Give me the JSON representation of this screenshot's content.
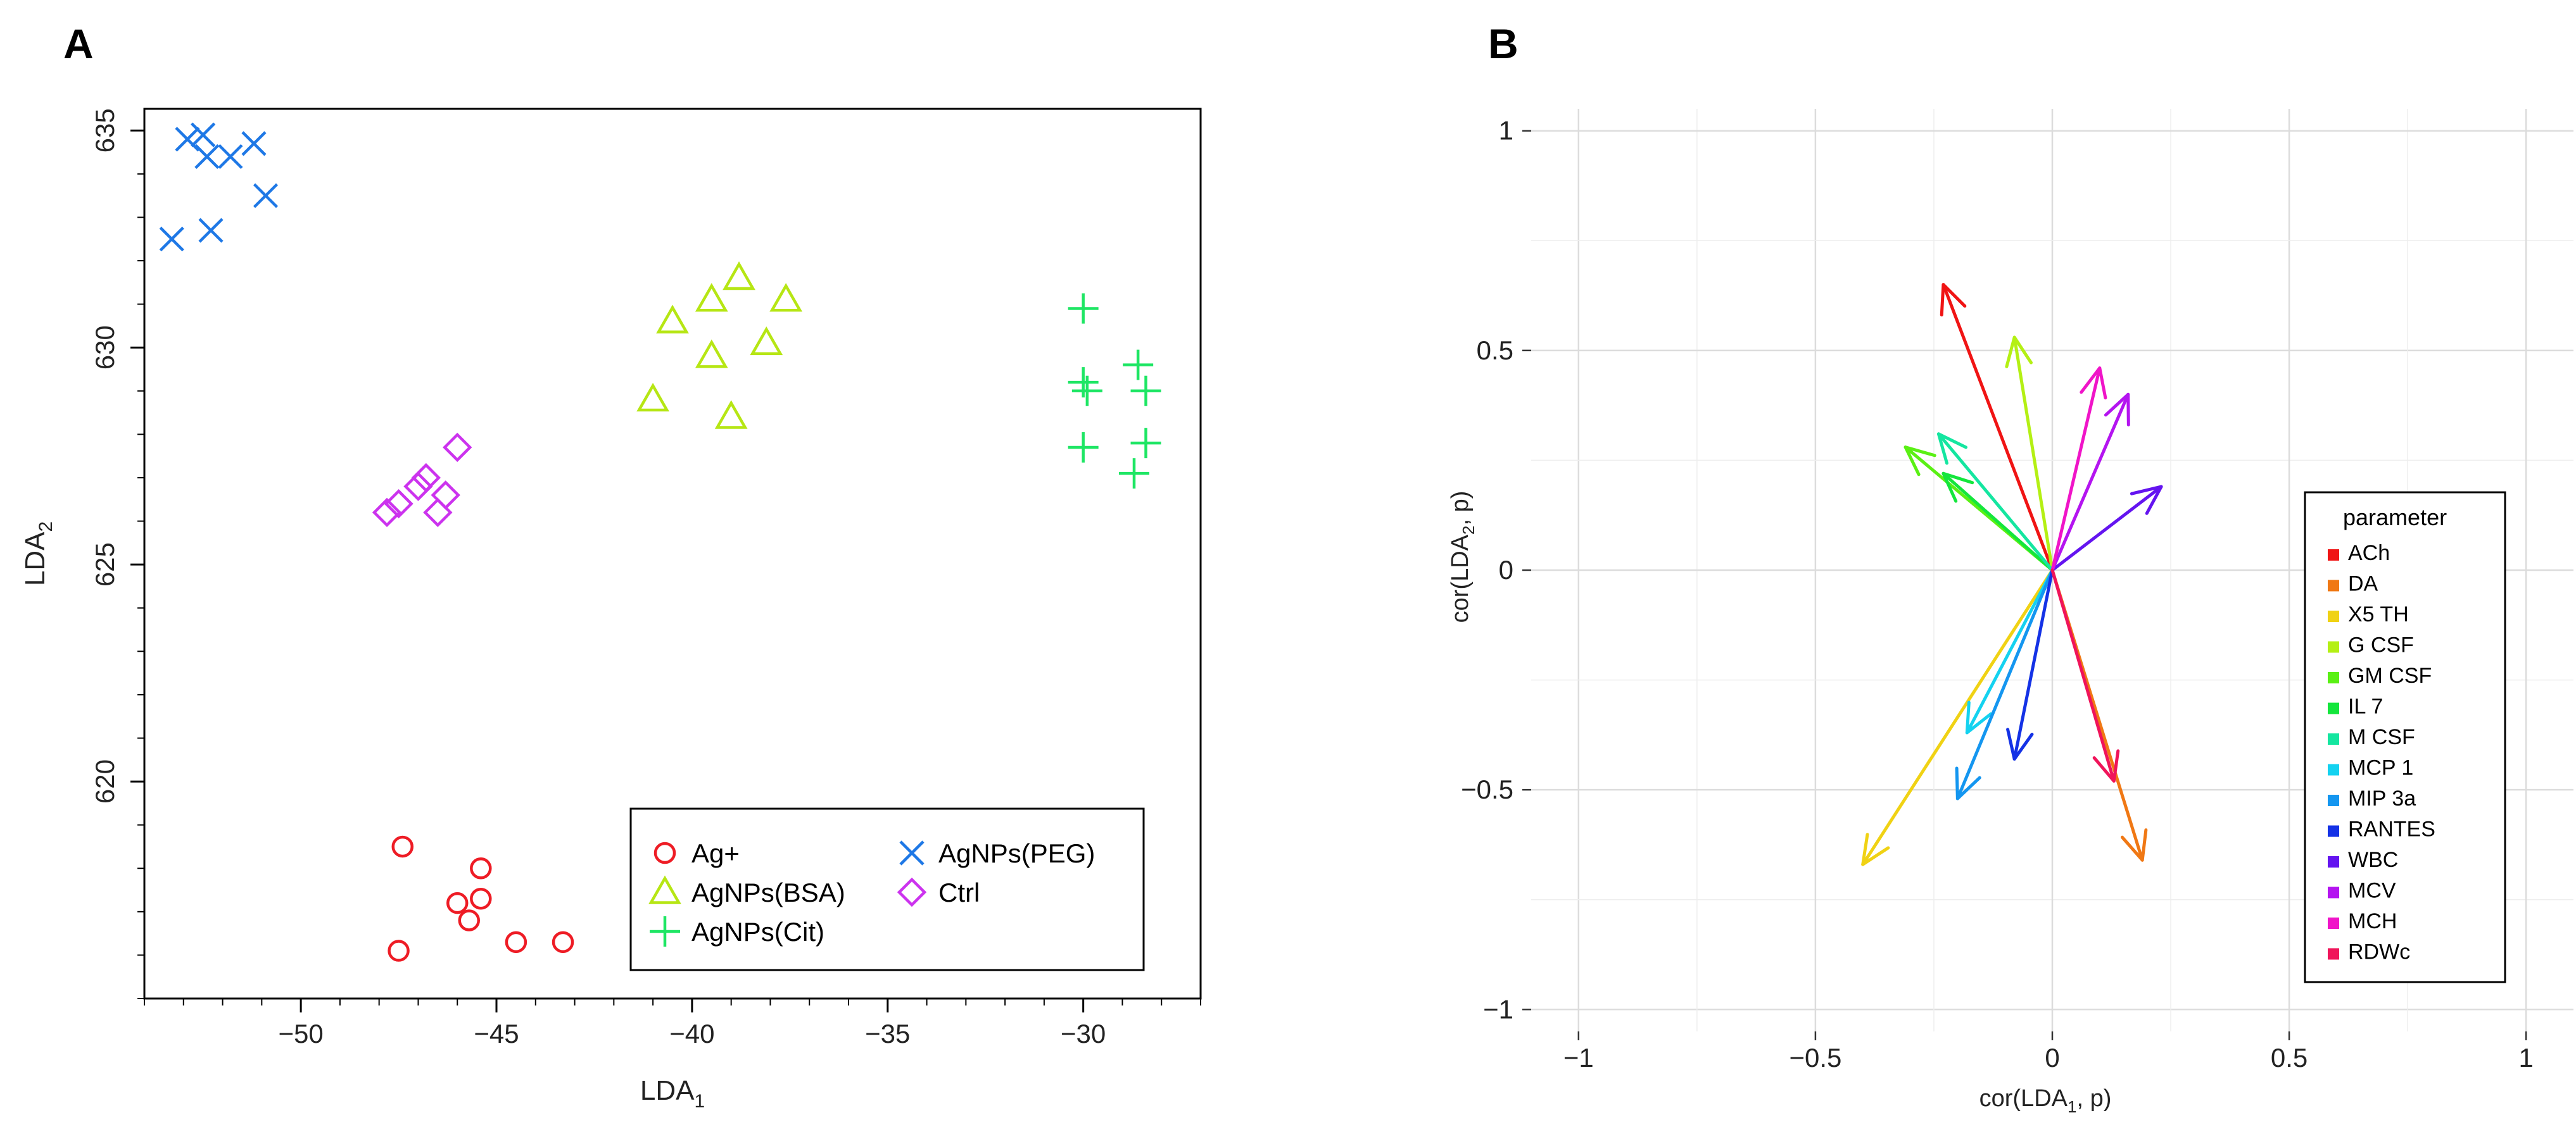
{
  "chart_data": [
    {
      "panel_label": "A",
      "type": "scatter",
      "xlabel": "LDA",
      "xlabel_sub": "1",
      "ylabel": "LDA",
      "ylabel_sub": "2",
      "xlim": [
        -54,
        -27
      ],
      "ylim": [
        615,
        635.5
      ],
      "xticks": [
        -50,
        -45,
        -40,
        -35,
        -30
      ],
      "xtick_labels": [
        "−50",
        "−45",
        "−40",
        "−35",
        "−30"
      ],
      "yticks": [
        620,
        625,
        630,
        635
      ],
      "ytick_labels": [
        "620",
        "625",
        "630",
        "635"
      ],
      "legend_position": "bottom-right",
      "series": [
        {
          "name": "Ag+",
          "marker": "circle",
          "color": "#ee1c25",
          "x": [
            -47.4,
            -45.4,
            -46.0,
            -45.4,
            -45.7,
            -44.5,
            -43.3,
            -47.5
          ],
          "y": [
            618.5,
            618.0,
            617.2,
            617.3,
            616.8,
            616.3,
            616.3,
            616.1
          ]
        },
        {
          "name": "AgNPs(BSA)",
          "marker": "triangle",
          "color": "#b6e614",
          "x": [
            -38.8,
            -39.5,
            -37.6,
            -40.5,
            -39.5,
            -38.1,
            -41.0,
            -39.0
          ],
          "y": [
            631.6,
            631.1,
            631.1,
            630.6,
            629.8,
            630.1,
            628.8,
            628.4
          ]
        },
        {
          "name": "AgNPs(Cit)",
          "marker": "plus",
          "color": "#1ee664",
          "x": [
            -30.0,
            -28.6,
            -30.0,
            -29.9,
            -28.4,
            -30.0,
            -28.4,
            -28.7
          ],
          "y": [
            630.9,
            629.6,
            629.2,
            629.0,
            629.0,
            627.7,
            627.8,
            627.1
          ]
        },
        {
          "name": "AgNPs(PEG)",
          "marker": "x",
          "color": "#1e78e6",
          "x": [
            -52.5,
            -52.9,
            -51.2,
            -51.8,
            -52.4,
            -50.9,
            -52.3,
            -53.3
          ],
          "y": [
            634.9,
            634.8,
            634.7,
            634.4,
            634.4,
            633.5,
            632.7,
            632.5
          ]
        },
        {
          "name": "Ctrl",
          "marker": "diamond",
          "color": "#cc33ee",
          "x": [
            -46.0,
            -46.8,
            -47.0,
            -46.3,
            -47.5,
            -47.8,
            -46.5
          ],
          "y": [
            627.7,
            627.0,
            626.8,
            626.6,
            626.4,
            626.2,
            626.2
          ]
        }
      ]
    },
    {
      "panel_label": "B",
      "type": "vector",
      "xlabel": "cor(LDA",
      "xlabel_sub": "1",
      "xlabel_suffix": ", p)",
      "ylabel": "cor(LDA",
      "ylabel_sub": "2",
      "ylabel_suffix": ", p)",
      "xlim": [
        -1.1,
        1.1
      ],
      "ylim": [
        -1.05,
        1.05
      ],
      "xticks": [
        -1,
        -0.5,
        0,
        0.5,
        1
      ],
      "xtick_labels": [
        "−1",
        "−0.5",
        "0",
        "0.5",
        "1"
      ],
      "yticks": [
        -1,
        -0.5,
        0,
        0.5,
        1
      ],
      "ytick_labels": [
        "−1",
        "−0.5",
        "0",
        "0.5",
        "1"
      ],
      "grid": true,
      "legend_title": "parameter",
      "legend_position": "right",
      "vectors": [
        {
          "name": "ACh",
          "color": "#f01414",
          "x": -0.23,
          "y": 0.65
        },
        {
          "name": "DA",
          "color": "#f07814",
          "x": 0.19,
          "y": -0.66
        },
        {
          "name": "X5 TH",
          "color": "#f0d214",
          "x": -0.4,
          "y": -0.67
        },
        {
          "name": "G CSF",
          "color": "#b4f014",
          "x": -0.08,
          "y": 0.53
        },
        {
          "name": "GM CSF",
          "color": "#5af014",
          "x": -0.31,
          "y": 0.28
        },
        {
          "name": "IL 7",
          "color": "#14e63c",
          "x": -0.23,
          "y": 0.22
        },
        {
          "name": "M CSF",
          "color": "#14e6a0",
          "x": -0.24,
          "y": 0.31
        },
        {
          "name": "MCP 1",
          "color": "#14d2f0",
          "x": -0.18,
          "y": -0.37
        },
        {
          "name": "MIP 3a",
          "color": "#1496f0",
          "x": -0.2,
          "y": -0.52
        },
        {
          "name": "RANTES",
          "color": "#1432e6",
          "x": -0.08,
          "y": -0.43
        },
        {
          "name": "WBC",
          "color": "#6414f0",
          "x": 0.23,
          "y": 0.19
        },
        {
          "name": "MCV",
          "color": "#b414f0",
          "x": 0.16,
          "y": 0.4
        },
        {
          "name": "MCH",
          "color": "#f014c8",
          "x": 0.1,
          "y": 0.46
        },
        {
          "name": "RDWc",
          "color": "#f0145a",
          "x": 0.13,
          "y": -0.48
        }
      ]
    }
  ]
}
